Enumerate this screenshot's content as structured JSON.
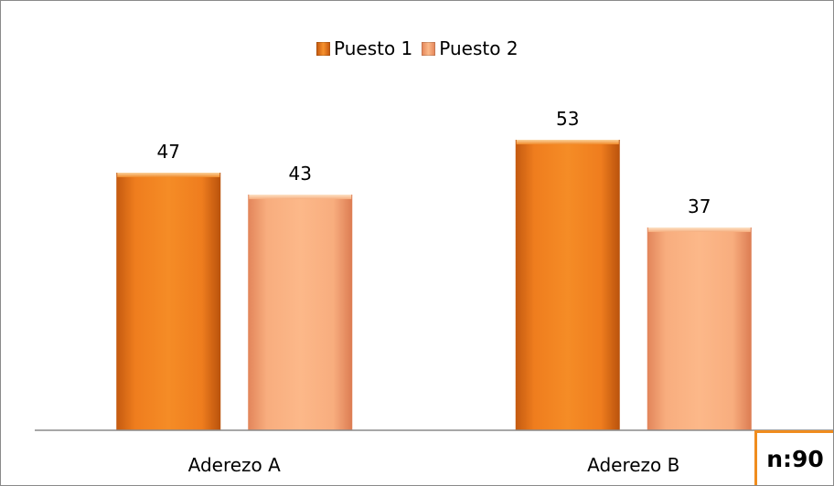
{
  "chart_data": {
    "type": "bar",
    "categories": [
      "Aderezo A",
      "Aderezo B"
    ],
    "series": [
      {
        "name": "Puesto 1",
        "values": [
          47,
          53
        ],
        "color": "#e8781c"
      },
      {
        "name": "Puesto 2",
        "values": [
          43,
          37
        ],
        "color": "#f7aa78"
      }
    ],
    "ylim": [
      0,
      60
    ],
    "grid": false,
    "legend_position": "top-center",
    "data_labels": true
  },
  "sample_size_label": "n:90"
}
